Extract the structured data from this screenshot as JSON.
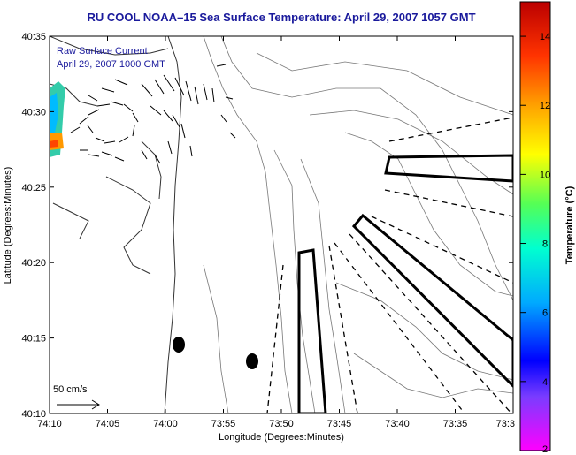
{
  "title": "RU COOL  NOAA–15  Sea Surface Temperature:  April 29, 2007 1057 GMT",
  "legend_lines": [
    "Raw Surface Current",
    "April 29, 2007 1000 GMT"
  ],
  "scale_label": "50 cm/s",
  "colorbar": {
    "label": "Temperature (°C)",
    "ticks": [
      "2",
      "4",
      "6",
      "8",
      "10",
      "12",
      "14"
    ],
    "range": [
      2,
      15
    ],
    "colors": [
      "#ff00ff",
      "#7a3cff",
      "#0000ff",
      "#00aaff",
      "#00ffd0",
      "#55ff55",
      "#ffff00",
      "#ffaa00",
      "#ff3300",
      "#bb0000"
    ]
  },
  "chart_data": {
    "type": "map",
    "xlabel": "Longitude (Degrees:Minutes)",
    "ylabel": "Latitude (Degrees:Minutes)",
    "x_ticks": [
      "74:10",
      "74:05",
      "74:00",
      "73:55",
      "73:50",
      "73:45",
      "73:40",
      "73:35",
      "73:3"
    ],
    "y_ticks": [
      "40:35",
      "40:30",
      "40:25",
      "40:20",
      "40:15",
      "40:10"
    ],
    "xlim_minutes_west": [
      70,
      0
    ],
    "ylim_minutes_north": [
      10,
      35
    ],
    "stations": [
      {
        "lon": "73:59",
        "lat": "40:15"
      },
      {
        "lon": "73:52",
        "lat": "40:13"
      }
    ]
  }
}
